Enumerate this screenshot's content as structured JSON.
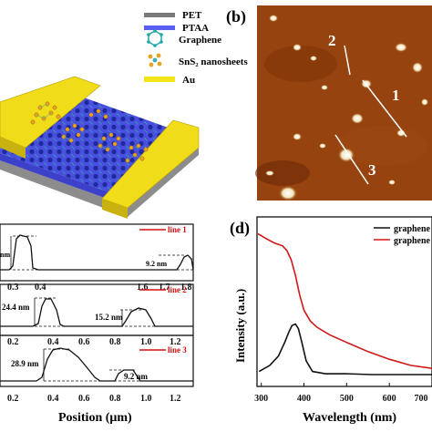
{
  "panel_a": {
    "legend": [
      {
        "label": "PET",
        "color": "#7a7a7a",
        "icon": "gray-bar"
      },
      {
        "label": "PTAA",
        "color": "#5a5ef0",
        "icon": "blue-bar"
      },
      {
        "label": "Graphene",
        "color": "#1fa6a6",
        "icon": "hexagon-icon"
      },
      {
        "label": "SnS₂ nanosheets",
        "color": "#e0a020",
        "icon": "molecule-icon"
      },
      {
        "label": "Au",
        "color": "#f3e41a",
        "icon": "yellow-bar"
      }
    ]
  },
  "panel_b": {
    "label": "(b)",
    "line_labels": [
      "1",
      "2",
      "3"
    ]
  },
  "panel_c": {
    "xlabel": "Position (μm)",
    "lines": [
      {
        "name": "line 1",
        "color": "#d01010",
        "annotations": [
          "nm",
          "9.2 nm"
        ],
        "xticks": [
          "0.3",
          "0.4",
          "1.6",
          "1.7",
          "1.8"
        ]
      },
      {
        "name": "line 2",
        "color": "#d01010",
        "annotations": [
          "24.4 nm",
          "15.2 nm"
        ],
        "xticks": [
          "0.2",
          "0.4",
          "0.6",
          "0.8",
          "1.0",
          "1.2"
        ]
      },
      {
        "name": "line 3",
        "color": "#d01010",
        "annotations": [
          "28.9 nm",
          "9.2 nm"
        ],
        "xticks": [
          "0.2",
          "0.4",
          "0.6",
          "0.8",
          "1.0",
          "1.2"
        ]
      }
    ]
  },
  "panel_d": {
    "label": "(d)",
    "chart_data": {
      "type": "line",
      "xlabel": "Wavelength (nm)",
      "ylabel": "Intensity (a.u.)",
      "xlim": [
        290,
        700
      ],
      "xticks": [
        "300",
        "400",
        "500",
        "600",
        "700"
      ],
      "series": [
        {
          "name": "graphene",
          "color": "#111111",
          "x": [
            295,
            320,
            340,
            355,
            365,
            372,
            380,
            387,
            395,
            405,
            420,
            450,
            500,
            560,
            620,
            680,
            700
          ],
          "y": [
            0.05,
            0.09,
            0.15,
            0.24,
            0.31,
            0.35,
            0.36,
            0.33,
            0.24,
            0.12,
            0.05,
            0.035,
            0.035,
            0.03,
            0.03,
            0.03,
            0.03
          ]
        },
        {
          "name": "graphene",
          "color": "#d01818",
          "x": [
            292,
            310,
            330,
            350,
            360,
            370,
            380,
            390,
            400,
            415,
            430,
            460,
            500,
            550,
            600,
            650,
            700
          ],
          "y": [
            0.95,
            0.92,
            0.89,
            0.87,
            0.84,
            0.78,
            0.68,
            0.55,
            0.45,
            0.38,
            0.34,
            0.29,
            0.24,
            0.18,
            0.13,
            0.09,
            0.07
          ]
        }
      ]
    }
  }
}
